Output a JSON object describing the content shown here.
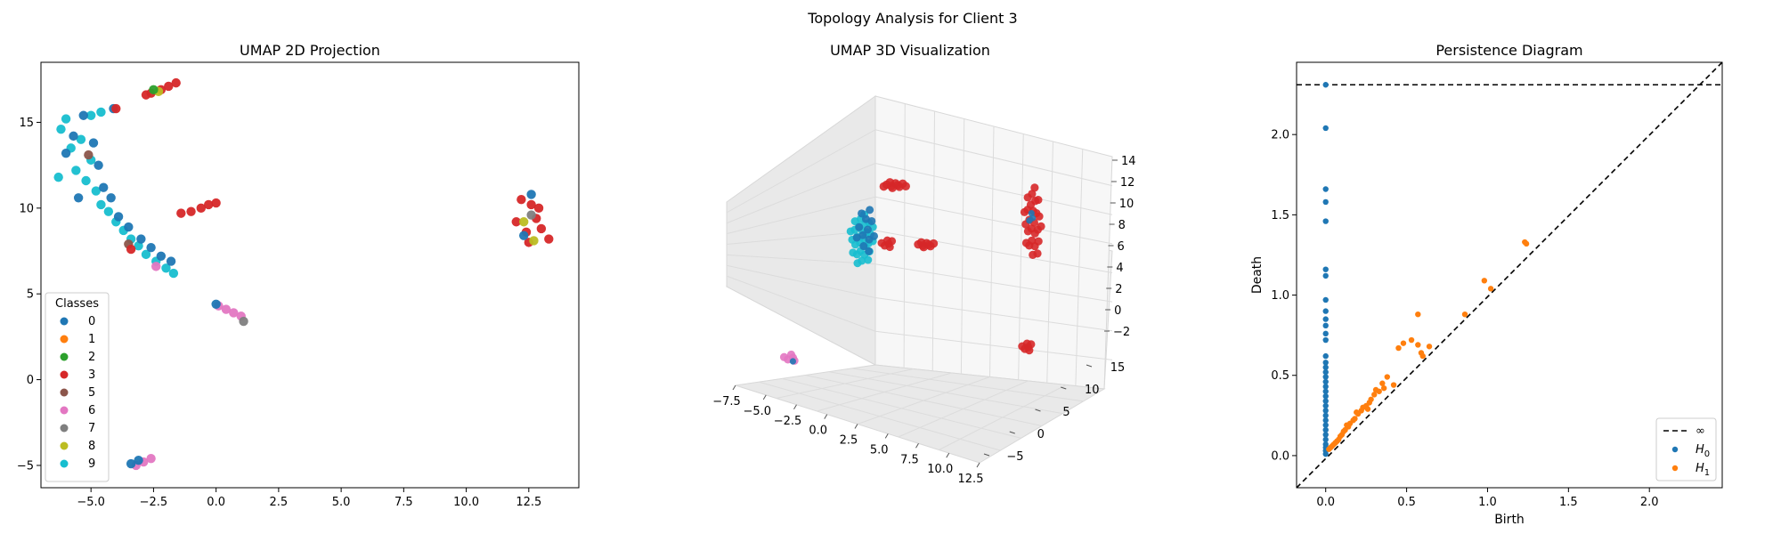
{
  "figure": {
    "suptitle": "Topology Analysis for Client 3"
  },
  "colors": {
    "c0": "#1f77b4",
    "c1": "#ff7f0e",
    "c2": "#2ca02c",
    "c3": "#d62728",
    "c5": "#8c564b",
    "c6": "#e377c2",
    "c7": "#7f7f7f",
    "c8": "#bcbd22",
    "c9": "#17becf"
  },
  "chart_data": [
    {
      "type": "scatter",
      "title": "UMAP 2D Projection",
      "xlabel": "",
      "ylabel": "",
      "xlim": [
        -7,
        14.5
      ],
      "ylim": [
        -6.3,
        18.5
      ],
      "xticks": [
        -5.0,
        -2.5,
        0.0,
        2.5,
        5.0,
        7.5,
        10.0,
        12.5
      ],
      "xtick_labels": [
        "−5.0",
        "−2.5",
        "0.0",
        "2.5",
        "5.0",
        "7.5",
        "10.0",
        "12.5"
      ],
      "yticks": [
        -5,
        0,
        5,
        10,
        15
      ],
      "ytick_labels": [
        "−5",
        "0",
        "5",
        "10",
        "15"
      ],
      "legend": {
        "title": "Classes",
        "placement": "lower-left",
        "entries": [
          {
            "label": "0",
            "color": "#1f77b4"
          },
          {
            "label": "1",
            "color": "#ff7f0e"
          },
          {
            "label": "2",
            "color": "#2ca02c"
          },
          {
            "label": "3",
            "color": "#d62728"
          },
          {
            "label": "5",
            "color": "#8c564b"
          },
          {
            "label": "6",
            "color": "#e377c2"
          },
          {
            "label": "7",
            "color": "#7f7f7f"
          },
          {
            "label": "8",
            "color": "#bcbd22"
          },
          {
            "label": "9",
            "color": "#17becf"
          }
        ]
      },
      "clusters": [
        {
          "class": "9",
          "points": [
            [
              -6.2,
              14.6
            ],
            [
              -6.0,
              15.2
            ],
            [
              -5.8,
              13.5
            ],
            [
              -5.6,
              12.2
            ],
            [
              -5.4,
              14.0
            ],
            [
              -5.2,
              11.6
            ],
            [
              -5.0,
              12.8
            ],
            [
              -4.8,
              11.0
            ],
            [
              -4.6,
              10.2
            ],
            [
              -4.3,
              9.8
            ],
            [
              -4.0,
              9.2
            ],
            [
              -3.7,
              8.7
            ],
            [
              -3.4,
              8.2
            ],
            [
              -3.1,
              7.8
            ],
            [
              -2.8,
              7.3
            ],
            [
              -2.4,
              6.9
            ],
            [
              -2.0,
              6.5
            ],
            [
              -1.7,
              6.2
            ],
            [
              -5.0,
              15.4
            ],
            [
              -4.6,
              15.6
            ],
            [
              -6.3,
              11.8
            ]
          ]
        },
        {
          "class": "0",
          "points": [
            [
              -6.0,
              13.2
            ],
            [
              -5.7,
              14.2
            ],
            [
              -5.3,
              15.4
            ],
            [
              -4.9,
              13.8
            ],
            [
              -4.7,
              12.5
            ],
            [
              -4.5,
              11.2
            ],
            [
              -4.2,
              10.6
            ],
            [
              -3.9,
              9.5
            ],
            [
              -3.5,
              8.9
            ],
            [
              -3.0,
              8.2
            ],
            [
              -2.6,
              7.7
            ],
            [
              -2.2,
              7.2
            ],
            [
              -1.8,
              6.9
            ],
            [
              -4.1,
              15.8
            ],
            [
              -5.5,
              10.6
            ]
          ]
        },
        {
          "class": "5",
          "points": [
            [
              -5.1,
              13.1
            ],
            [
              -3.5,
              7.9
            ]
          ]
        },
        {
          "class": "3",
          "points": [
            [
              -3.4,
              7.6
            ],
            [
              -4.0,
              15.8
            ],
            [
              -2.6,
              16.7
            ],
            [
              -2.2,
              16.9
            ],
            [
              -1.9,
              17.1
            ],
            [
              -1.6,
              17.3
            ],
            [
              -2.8,
              16.6
            ],
            [
              -1.4,
              9.7
            ],
            [
              -1.0,
              9.8
            ],
            [
              -0.6,
              10.0
            ],
            [
              -0.3,
              10.2
            ],
            [
              0.0,
              10.3
            ],
            [
              12.2,
              10.5
            ],
            [
              12.6,
              10.2
            ],
            [
              12.0,
              9.2
            ],
            [
              12.4,
              8.6
            ],
            [
              12.8,
              9.4
            ],
            [
              13.0,
              8.8
            ],
            [
              13.3,
              8.2
            ],
            [
              12.5,
              8.0
            ],
            [
              12.9,
              10.0
            ]
          ]
        },
        {
          "class": "6",
          "points": [
            [
              -2.4,
              6.6
            ],
            [
              0.1,
              4.3
            ],
            [
              0.4,
              4.1
            ],
            [
              0.7,
              3.9
            ],
            [
              1.0,
              3.7
            ],
            [
              -3.2,
              -5.0
            ],
            [
              -2.9,
              -4.8
            ],
            [
              -2.6,
              -4.6
            ]
          ]
        },
        {
          "class": "0",
          "points": [
            [
              0.0,
              4.4
            ],
            [
              -3.4,
              -4.9
            ],
            [
              -3.1,
              -4.7
            ],
            [
              12.6,
              10.8
            ],
            [
              12.3,
              8.4
            ]
          ]
        },
        {
          "class": "7",
          "points": [
            [
              1.1,
              3.4
            ],
            [
              12.6,
              9.6
            ]
          ]
        },
        {
          "class": "8",
          "points": [
            [
              12.7,
              8.1
            ],
            [
              12.3,
              9.2
            ],
            [
              -2.3,
              16.8
            ]
          ]
        },
        {
          "class": "2",
          "points": [
            [
              -2.5,
              16.9
            ]
          ]
        }
      ]
    },
    {
      "type": "scatter",
      "subtype": "3d",
      "title": "UMAP 3D Visualization",
      "x_tick_labels": [
        "−7.5",
        "−5.0",
        "−2.5",
        "0.0",
        "2.5",
        "5.0",
        "7.5",
        "10.0",
        "12.5"
      ],
      "y_tick_labels": [
        "−5",
        "0",
        "5",
        "10",
        "15"
      ],
      "z_tick_labels": [
        "−2",
        "0",
        "2",
        "4",
        "6",
        "8",
        "10",
        "12",
        "14"
      ],
      "clusters": [
        {
          "class": "9",
          "count": 40
        },
        {
          "class": "0",
          "count": 20
        },
        {
          "class": "3",
          "count": 60
        },
        {
          "class": "6",
          "count": 6
        }
      ]
    },
    {
      "type": "scatter",
      "title": "Persistence Diagram",
      "xlabel": "Birth",
      "ylabel": "Death",
      "xlim": [
        -0.18,
        2.45
      ],
      "ylim": [
        -0.2,
        2.45
      ],
      "xticks": [
        0.0,
        0.5,
        1.0,
        1.5,
        2.0
      ],
      "xtick_labels": [
        "0.0",
        "0.5",
        "1.0",
        "1.5",
        "2.0"
      ],
      "yticks": [
        0.0,
        0.5,
        1.0,
        1.5,
        2.0
      ],
      "ytick_labels": [
        "0.0",
        "0.5",
        "1.0",
        "1.5",
        "2.0"
      ],
      "infinity_death": 2.31,
      "legend": {
        "placement": "lower-right",
        "entries": [
          {
            "label": "∞",
            "kind": "dashed-line",
            "color": "#000000"
          },
          {
            "label": "H",
            "sub": "0",
            "kind": "point",
            "color": "#1f77b4"
          },
          {
            "label": "H",
            "sub": "1",
            "kind": "point",
            "color": "#ff7f0e"
          }
        ]
      },
      "series": [
        {
          "name": "H0",
          "color": "#1f77b4",
          "points": [
            [
              0,
              2.31
            ],
            [
              0,
              2.04
            ],
            [
              0,
              1.66
            ],
            [
              0,
              1.58
            ],
            [
              0,
              1.46
            ],
            [
              0,
              1.16
            ],
            [
              0,
              1.12
            ],
            [
              0,
              0.97
            ],
            [
              0,
              0.9
            ],
            [
              0,
              0.85
            ],
            [
              0,
              0.81
            ],
            [
              0,
              0.76
            ],
            [
              0,
              0.72
            ],
            [
              0,
              0.62
            ],
            [
              0,
              0.58
            ],
            [
              0,
              0.55
            ],
            [
              0,
              0.52
            ],
            [
              0,
              0.49
            ],
            [
              0,
              0.46
            ],
            [
              0,
              0.43
            ],
            [
              0,
              0.4
            ],
            [
              0,
              0.37
            ],
            [
              0,
              0.34
            ],
            [
              0,
              0.31
            ],
            [
              0,
              0.28
            ],
            [
              0,
              0.25
            ],
            [
              0,
              0.22
            ],
            [
              0,
              0.19
            ],
            [
              0,
              0.16
            ],
            [
              0,
              0.13
            ],
            [
              0,
              0.1
            ],
            [
              0,
              0.07
            ],
            [
              0,
              0.05
            ],
            [
              0,
              0.03
            ],
            [
              0,
              0.01
            ]
          ]
        },
        {
          "name": "H1",
          "color": "#ff7f0e",
          "points": [
            [
              1.23,
              1.33
            ],
            [
              1.24,
              1.32
            ],
            [
              0.98,
              1.09
            ],
            [
              1.02,
              1.04
            ],
            [
              0.57,
              0.88
            ],
            [
              0.86,
              0.88
            ],
            [
              0.45,
              0.67
            ],
            [
              0.48,
              0.7
            ],
            [
              0.53,
              0.72
            ],
            [
              0.57,
              0.69
            ],
            [
              0.6,
              0.62
            ],
            [
              0.59,
              0.64
            ],
            [
              0.64,
              0.68
            ],
            [
              0.38,
              0.49
            ],
            [
              0.42,
              0.44
            ],
            [
              0.35,
              0.45
            ],
            [
              0.33,
              0.4
            ],
            [
              0.3,
              0.38
            ],
            [
              0.28,
              0.35
            ],
            [
              0.27,
              0.33
            ],
            [
              0.25,
              0.31
            ],
            [
              0.23,
              0.3
            ],
            [
              0.22,
              0.28
            ],
            [
              0.2,
              0.26
            ],
            [
              0.18,
              0.23
            ],
            [
              0.17,
              0.22
            ],
            [
              0.15,
              0.2
            ],
            [
              0.14,
              0.18
            ],
            [
              0.12,
              0.16
            ],
            [
              0.11,
              0.15
            ],
            [
              0.1,
              0.13
            ],
            [
              0.09,
              0.12
            ],
            [
              0.08,
              0.1
            ],
            [
              0.07,
              0.09
            ],
            [
              0.06,
              0.08
            ],
            [
              0.05,
              0.07
            ],
            [
              0.04,
              0.06
            ],
            [
              0.03,
              0.05
            ],
            [
              0.02,
              0.04
            ],
            [
              0.31,
              0.41
            ],
            [
              0.36,
              0.42
            ],
            [
              0.26,
              0.29
            ],
            [
              0.19,
              0.27
            ],
            [
              0.13,
              0.19
            ]
          ]
        }
      ]
    }
  ]
}
